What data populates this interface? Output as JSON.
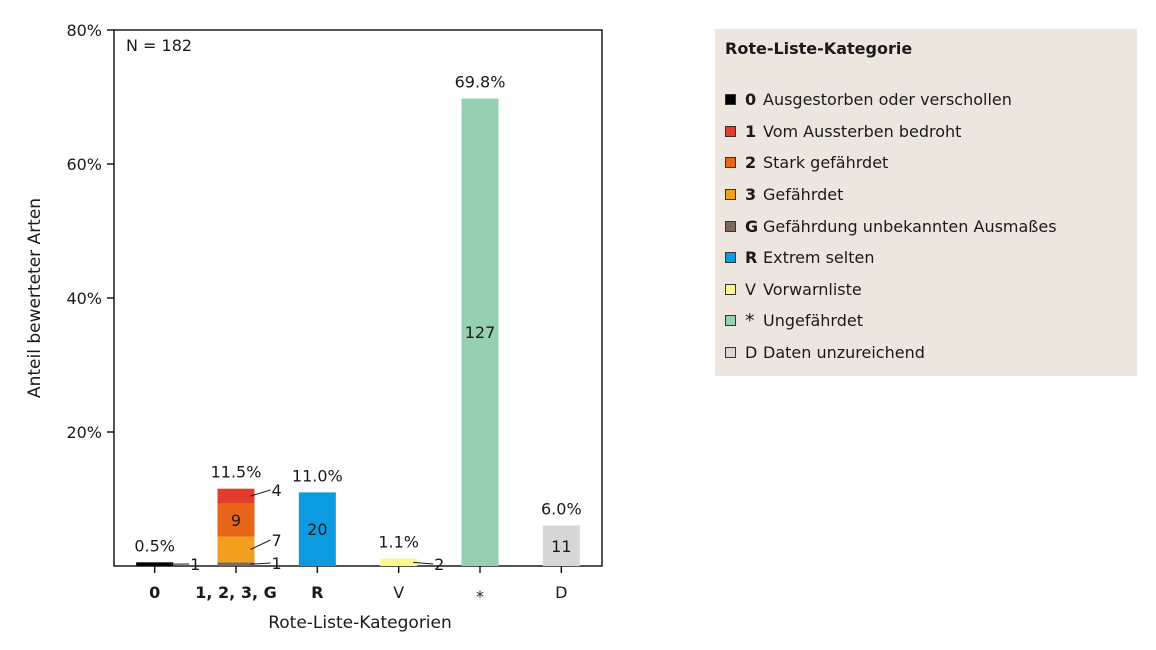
{
  "chart_data": {
    "type": "bar",
    "xlabel": "Rote-Liste-Kategorien",
    "ylabel": "Anteil bewerteter Arten",
    "ylim": [
      0,
      80
    ],
    "yticks": [
      {
        "value": 20,
        "label": "20%"
      },
      {
        "value": 40,
        "label": "40%"
      },
      {
        "value": 60,
        "label": "60%"
      },
      {
        "value": 80,
        "label": "80%"
      }
    ],
    "annotation": "N = 182",
    "total": 182,
    "categories": [
      {
        "key": "0",
        "label": "0",
        "bold": true,
        "total_label": "0.5%",
        "segments": [
          {
            "code": "0",
            "count": 1,
            "color": "#000000",
            "label_side": "right"
          }
        ]
      },
      {
        "key": "123G",
        "label": "1, 2, 3, G",
        "bold": true,
        "total_label": "11.5%",
        "segments": [
          {
            "code": "G",
            "count": 1,
            "color": "#7a6a5a",
            "label_side": "right"
          },
          {
            "code": "3",
            "count": 7,
            "color": "#f0a01e",
            "label_side": "right"
          },
          {
            "code": "2",
            "count": 9,
            "color": "#e8661a",
            "label_side": "inside"
          },
          {
            "code": "1",
            "count": 4,
            "color": "#e23c2e",
            "label_side": "right"
          }
        ]
      },
      {
        "key": "R",
        "label": "R",
        "bold": true,
        "total_label": "11.0%",
        "segments": [
          {
            "code": "R",
            "count": 20,
            "color": "#0c9be1",
            "label_side": "inside"
          }
        ]
      },
      {
        "key": "V",
        "label": "V",
        "bold": false,
        "total_label": "1.1%",
        "segments": [
          {
            "code": "V",
            "count": 2,
            "color": "#fdf58e",
            "label_side": "right"
          }
        ]
      },
      {
        "key": "star",
        "label": "*",
        "bold": false,
        "total_label": "69.8%",
        "segments": [
          {
            "code": "*",
            "count": 127,
            "color": "#96d0b0",
            "label_side": "inside"
          }
        ]
      },
      {
        "key": "D",
        "label": "D",
        "bold": false,
        "total_label": "6.0%",
        "segments": [
          {
            "code": "D",
            "count": 11,
            "color": "#d7d7d7",
            "label_side": "inside"
          }
        ]
      }
    ]
  },
  "legend": {
    "title": "Rote-Liste-Kategorie",
    "items": [
      {
        "code": "0",
        "bold": true,
        "text": "Ausgestorben oder verschollen",
        "color": "#000000"
      },
      {
        "code": "1",
        "bold": true,
        "text": "Vom Aussterben bedroht",
        "color": "#e23c2e"
      },
      {
        "code": "2",
        "bold": true,
        "text": "Stark gefährdet",
        "color": "#e8661a"
      },
      {
        "code": "3",
        "bold": true,
        "text": "Gefährdet",
        "color": "#f0a01e"
      },
      {
        "code": "G",
        "bold": true,
        "text": "Gefährdung unbekannten Ausmaßes",
        "color": "#7a6a5a"
      },
      {
        "code": "R",
        "bold": true,
        "text": "Extrem selten",
        "color": "#0c9be1"
      },
      {
        "code": "V",
        "bold": false,
        "text": "Vorwarnliste",
        "color": "#fdf58e"
      },
      {
        "code": "*",
        "bold": false,
        "text": "Ungefährdet",
        "color": "#96d0b0"
      },
      {
        "code": "D",
        "bold": false,
        "text": "Daten unzureichend",
        "color": "#d7d7d7"
      }
    ]
  }
}
